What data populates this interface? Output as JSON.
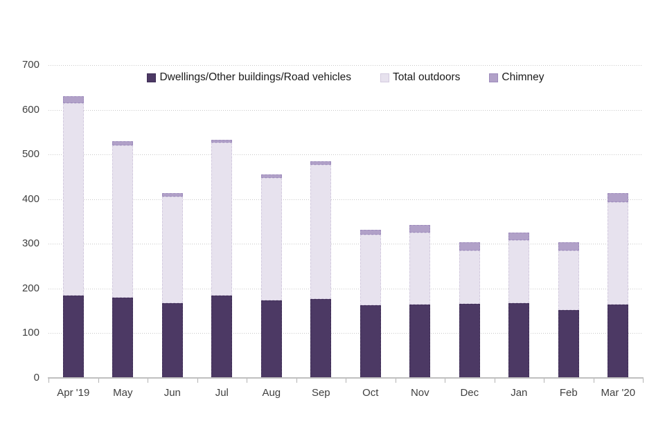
{
  "chart_data": {
    "type": "bar",
    "stacked": true,
    "categories": [
      "Apr '19",
      "May",
      "Jun",
      "Jul",
      "Aug",
      "Sep",
      "Oct",
      "Nov",
      "Dec",
      "Jan",
      "Feb",
      "Mar '20"
    ],
    "series": [
      {
        "name": "Dwellings/Other buildings/Road vehicles",
        "color": "#4c3964",
        "border_color": "#3e2d55",
        "values": [
          185,
          179,
          168,
          185,
          174,
          177,
          163,
          164,
          166,
          167,
          152,
          164
        ]
      },
      {
        "name": "Total outdoors",
        "color": "#e7e2ee",
        "border_color": "#d3cadf",
        "values": [
          430,
          341,
          238,
          342,
          274,
          300,
          157,
          162,
          119,
          142,
          133,
          230
        ]
      },
      {
        "name": "Chimney",
        "color": "#b1a1c8",
        "border_color": "#9d8bbc",
        "values": [
          15,
          10,
          8,
          6,
          8,
          8,
          11,
          17,
          18,
          17,
          18,
          20
        ]
      }
    ],
    "ylim": [
      0,
      700
    ],
    "yticks": [
      0,
      100,
      200,
      300,
      400,
      500,
      600,
      700
    ],
    "grid": "horizontal-dotted",
    "legend_position": "top-center-inside",
    "gridline_color": "#c7c7c7",
    "axis_color": "#bfbfbf",
    "tick_mark_color": "#b3b3b3",
    "tick_label_color": "#3f3f3f"
  }
}
